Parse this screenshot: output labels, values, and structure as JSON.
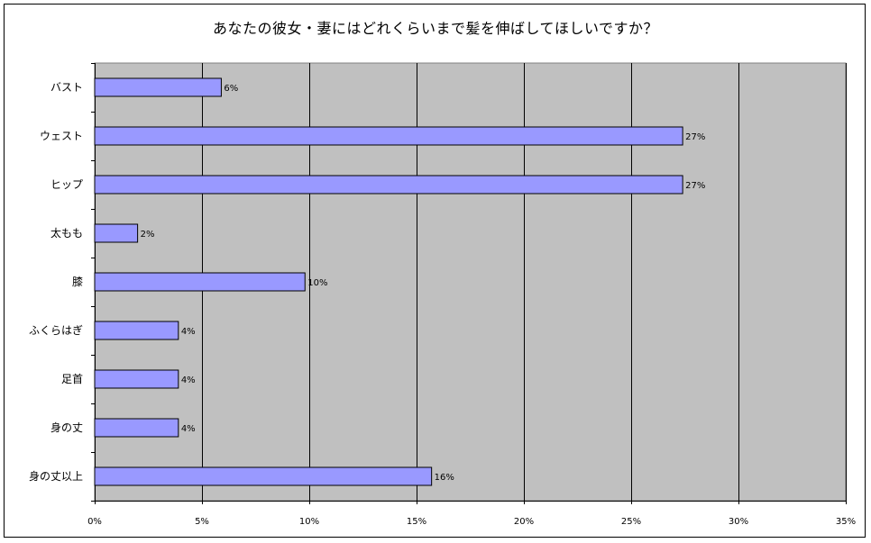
{
  "chart_data": {
    "type": "bar",
    "orientation": "horizontal",
    "title": "あなたの彼女・妻にはどれくらいまで髪を伸ばしてほしいですか？",
    "categories": [
      "バスト",
      "ウェスト",
      "ヒップ",
      "太もも",
      "膝",
      "ふくらはぎ",
      "足首",
      "身の丈",
      "身の丈以上"
    ],
    "values": [
      6,
      27,
      27,
      2,
      10,
      4,
      4,
      4,
      16
    ],
    "plotted_values": [
      5.9,
      27.4,
      27.4,
      2.0,
      9.8,
      3.9,
      3.9,
      3.9,
      15.7
    ],
    "data_labels": [
      "6%",
      "27%",
      "27%",
      "2%",
      "10%",
      "4%",
      "4%",
      "4%",
      "16%"
    ],
    "xlim": [
      0,
      35
    ],
    "x_ticks": [
      0,
      5,
      10,
      15,
      20,
      25,
      30,
      35
    ],
    "x_tick_labels": [
      "0%",
      "5%",
      "10%",
      "15%",
      "20%",
      "25%",
      "30%",
      "35%"
    ],
    "grid": "vertical",
    "legend": "none",
    "colors": {
      "bar_fill": "#9999ff",
      "bar_stroke": "#000000",
      "plot_background": "#c0c0c0",
      "gridline": "#000000"
    }
  }
}
